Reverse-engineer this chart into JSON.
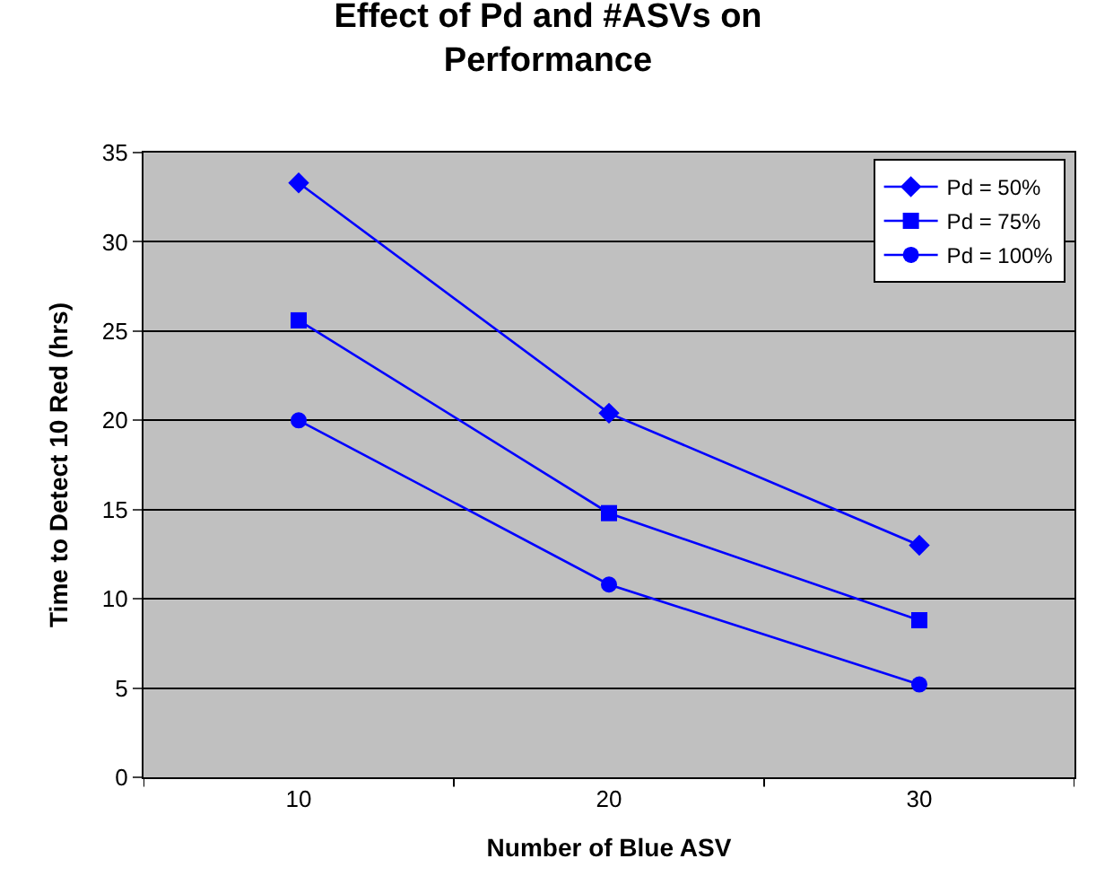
{
  "chart_data": {
    "type": "line",
    "title": "Effect of Pd and #ASVs on\nPerformance",
    "xlabel": "Number of Blue ASV",
    "ylabel": "Time to Detect 10 Red (hrs)",
    "categories": [
      "10",
      "20",
      "30"
    ],
    "series": [
      {
        "name": "Pd = 50%",
        "color": "#0000ff",
        "marker": "diamond",
        "values": [
          33.3,
          20.4,
          13.0
        ]
      },
      {
        "name": "Pd = 75%",
        "color": "#0000ff",
        "marker": "square",
        "values": [
          25.6,
          14.8,
          8.8
        ]
      },
      {
        "name": "Pd = 100%",
        "color": "#0000ff",
        "marker": "circle",
        "values": [
          20.0,
          10.8,
          5.2
        ]
      }
    ],
    "ylim": [
      0,
      35
    ],
    "yticks": [
      0,
      5,
      10,
      15,
      20,
      25,
      30,
      35
    ],
    "grid": "y",
    "legend": "top right",
    "line_style": "solid"
  }
}
